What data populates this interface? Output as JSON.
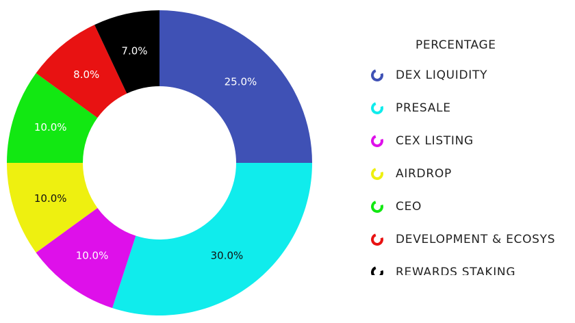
{
  "chart_data": {
    "type": "pie",
    "donut": true,
    "legend_title": "PERCENTAGE",
    "legend_position": "right",
    "slices": [
      {
        "label": "DEX LIQUIDITY",
        "value": 25.0,
        "display": "25.0%",
        "color": "#3f51b5"
      },
      {
        "label": "PRESALE",
        "value": 30.0,
        "display": "30.0%",
        "color": "#10ecec"
      },
      {
        "label": "CEX LISTING",
        "value": 10.0,
        "display": "10.0%",
        "color": "#de10ea"
      },
      {
        "label": "AIRDROP",
        "value": 10.0,
        "display": "10.0%",
        "color": "#eef010"
      },
      {
        "label": "CEO",
        "value": 10.0,
        "display": "10.0%",
        "color": "#12e812"
      },
      {
        "label": "DEVELOPMENT & ECOSYS",
        "value": 8.0,
        "display": "8.0%",
        "color": "#e81212"
      },
      {
        "label": "REWARDS STAKING",
        "value": 7.0,
        "display": "7.0%",
        "color": "#000000"
      }
    ]
  }
}
